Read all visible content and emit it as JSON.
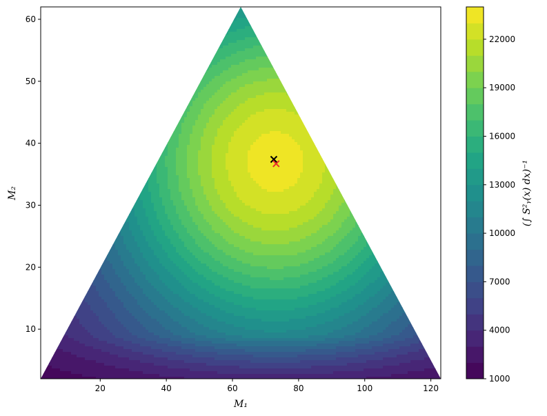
{
  "chart_data": {
    "type": "heatmap",
    "subtype": "filled-contour",
    "title": "",
    "xlabel": "M₁",
    "ylabel": "M₂",
    "colorbar_label": "(∫ S²ᵧ(x) dx)⁻¹",
    "xlim": [
      2,
      123
    ],
    "ylim": [
      2,
      62
    ],
    "x_ticks": [
      20,
      40,
      60,
      80,
      100,
      120
    ],
    "y_ticks": [
      10,
      20,
      30,
      40,
      50,
      60
    ],
    "colorbar": {
      "range": [
        1000,
        24000
      ],
      "ticks": [
        1000,
        4000,
        7000,
        10000,
        13000,
        16000,
        19000,
        22000
      ],
      "levels": [
        1000,
        2000,
        3000,
        4000,
        5000,
        6000,
        7000,
        8000,
        9000,
        10000,
        11000,
        12000,
        13000,
        14000,
        15000,
        16000,
        17000,
        18000,
        19000,
        20000,
        21000,
        22000,
        23000,
        24000
      ],
      "colormap": "viridis"
    },
    "domain_triangle": {
      "vertices": [
        [
          2,
          2
        ],
        [
          62.5,
          62
        ],
        [
          123,
          2
        ]
      ]
    },
    "field_model": {
      "peak": [
        73,
        37
      ],
      "peak_value": 23500,
      "floor_value": 1000
    },
    "markers": [
      {
        "name": "black-x",
        "x": 72.5,
        "y": 37.4,
        "color": "#000000",
        "symbol": "x"
      },
      {
        "name": "red-x",
        "x": 73.2,
        "y": 36.7,
        "color": "#e8302a",
        "symbol": "x"
      }
    ],
    "grid": false
  }
}
